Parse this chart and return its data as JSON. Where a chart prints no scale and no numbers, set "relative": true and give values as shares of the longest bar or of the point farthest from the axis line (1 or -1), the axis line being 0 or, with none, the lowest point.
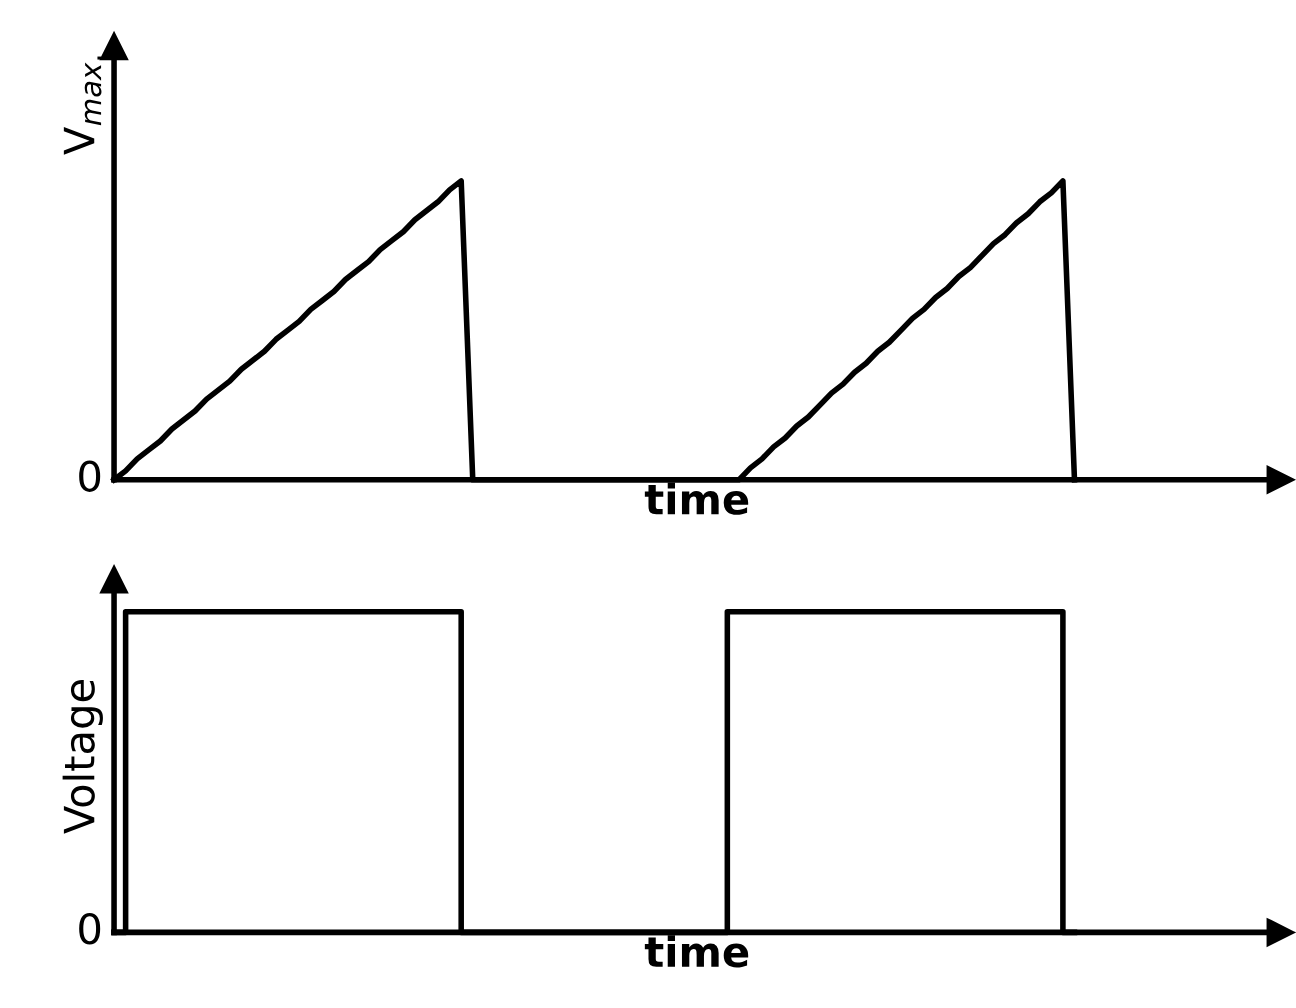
{
  "chart_data": [
    {
      "type": "line",
      "relative": true,
      "xlabel": "time",
      "ylabel": "V$_{max.}$",
      "marker": "none",
      "line_style": "solid",
      "annotations": [
        "0"
      ],
      "categories": [
        null,
        null,
        null,
        null,
        null,
        null,
        null,
        null,
        null,
        null,
        null,
        null,
        null,
        null,
        null,
        null,
        null,
        null,
        null,
        null,
        null,
        null,
        null,
        null,
        null,
        null,
        null,
        null,
        null,
        null,
        null,
        null,
        null,
        null,
        null,
        null,
        null,
        null,
        null,
        null,
        null,
        null,
        null,
        null,
        null,
        null,
        null,
        null,
        null,
        null,
        null,
        null,
        null,
        null,
        null,
        null,
        null,
        null,
        null,
        null,
        null,
        null,
        null,
        null,
        null,
        null,
        null,
        null,
        null,
        null,
        null,
        null,
        null,
        null,
        null,
        null,
        null,
        null,
        null,
        null,
        null,
        null,
        null,
        null
      ],
      "series": [
        {
          "color": "#000000",
          "values": [
            0,
            0.03,
            0.07,
            0.1,
            0.13,
            0.17,
            0.2,
            0.23,
            0.27,
            0.3,
            0.33,
            0.37,
            0.4,
            0.43,
            0.47,
            0.5,
            0.53,
            0.57,
            0.6,
            0.63,
            0.67,
            0.7,
            0.73,
            0.77,
            0.8,
            0.83,
            0.87,
            0.9,
            0.93,
            0.97,
            1,
            0,
            0,
            0,
            0,
            0,
            0,
            0,
            0,
            0,
            0,
            0,
            0,
            0,
            0,
            0,
            0,
            0,
            0,
            0,
            0,
            0,
            0,
            0,
            0,
            0.04,
            0.07,
            0.11,
            0.14,
            0.18,
            0.21,
            0.25,
            0.29,
            0.32,
            0.36,
            0.39,
            0.43,
            0.46,
            0.5,
            0.54,
            0.57,
            0.61,
            0.64,
            0.68,
            0.71,
            0.75,
            0.79,
            0.82,
            0.86,
            0.89,
            0.93,
            0.96,
            1,
            0
          ]
        }
      ]
    },
    {
      "type": "step",
      "relative": true,
      "xlabel": "time",
      "ylabel": "Voltage",
      "marker": "none",
      "line_style": "solid",
      "annotations": [
        "0"
      ],
      "categories": [
        null,
        null,
        null,
        null,
        null,
        null,
        null,
        null,
        null,
        null,
        null,
        null,
        null,
        null,
        null,
        null,
        null,
        null,
        null,
        null,
        null,
        null,
        null,
        null,
        null,
        null,
        null,
        null,
        null,
        null,
        null,
        null,
        null,
        null,
        null,
        null,
        null,
        null,
        null,
        null,
        null,
        null,
        null,
        null,
        null,
        null,
        null,
        null,
        null,
        null,
        null,
        null,
        null,
        null,
        null,
        null,
        null,
        null,
        null,
        null,
        null,
        null,
        null,
        null,
        null,
        null,
        null,
        null,
        null,
        null,
        null,
        null,
        null,
        null,
        null,
        null,
        null,
        null,
        null,
        null,
        null,
        null,
        null,
        null
      ],
      "series": [
        {
          "color": "#000000",
          "values": [
            0,
            1,
            1,
            1,
            1,
            1,
            1,
            1,
            1,
            1,
            1,
            1,
            1,
            1,
            1,
            1,
            1,
            1,
            1,
            1,
            1,
            1,
            1,
            1,
            1,
            1,
            1,
            1,
            1,
            1,
            0,
            0,
            0,
            0,
            0,
            0,
            0,
            0,
            0,
            0,
            0,
            0,
            0,
            0,
            0,
            0,
            0,
            0,
            0,
            0,
            0,
            0,
            0,
            1,
            1,
            1,
            1,
            1,
            1,
            1,
            1,
            1,
            1,
            1,
            1,
            1,
            1,
            1,
            1,
            1,
            1,
            1,
            1,
            1,
            1,
            1,
            1,
            1,
            1,
            1,
            1,
            1,
            0,
            0
          ]
        }
      ]
    }
  ]
}
